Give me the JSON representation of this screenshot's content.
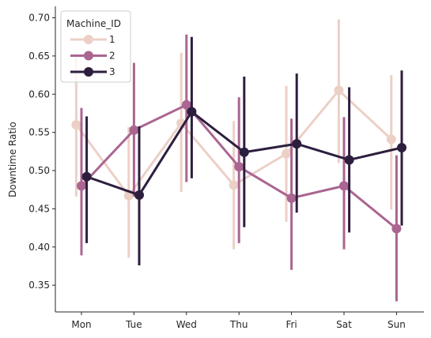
{
  "chart_data": {
    "type": "line",
    "title": "",
    "xlabel": "",
    "ylabel": "Downtime Ratio",
    "categories": [
      "Mon",
      "Tue",
      "Wed",
      "Thu",
      "Fri",
      "Sat",
      "Sun"
    ],
    "ylim": [
      0.315,
      0.715
    ],
    "yticks": [
      "0.35",
      "0.40",
      "0.45",
      "0.50",
      "0.55",
      "0.60",
      "0.65",
      "0.70"
    ],
    "grid": false,
    "legend": {
      "title": "Machine_ID",
      "placement": "top-left"
    },
    "series": [
      {
        "name": "1",
        "color": "#ecd0c6",
        "values": [
          0.56,
          0.467,
          0.562,
          0.481,
          0.522,
          0.605,
          0.541
        ],
        "ci_low": [
          0.466,
          0.386,
          0.472,
          0.397,
          0.433,
          0.51,
          0.449
        ],
        "ci_high": [
          0.655,
          0.557,
          0.654,
          0.565,
          0.611,
          0.698,
          0.625
        ]
      },
      {
        "name": "2",
        "color": "#aa6591",
        "values": [
          0.48,
          0.553,
          0.586,
          0.505,
          0.464,
          0.48,
          0.424
        ],
        "ci_low": [
          0.389,
          0.466,
          0.485,
          0.405,
          0.37,
          0.397,
          0.329
        ],
        "ci_high": [
          0.582,
          0.641,
          0.678,
          0.596,
          0.568,
          0.57,
          0.52
        ]
      },
      {
        "name": "3",
        "color": "#2d1e3e",
        "values": [
          0.492,
          0.468,
          0.577,
          0.524,
          0.535,
          0.514,
          0.53
        ],
        "ci_low": [
          0.405,
          0.376,
          0.49,
          0.426,
          0.445,
          0.419,
          0.428
        ],
        "ci_high": [
          0.571,
          0.558,
          0.675,
          0.623,
          0.627,
          0.609,
          0.631
        ]
      }
    ]
  }
}
